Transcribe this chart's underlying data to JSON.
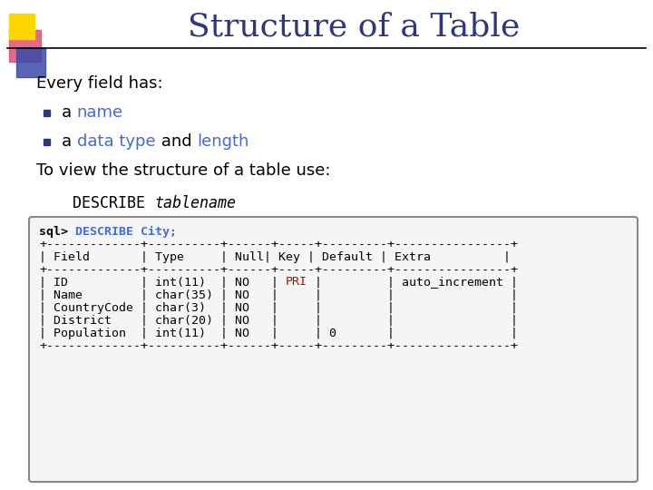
{
  "title": "Structure of a Table",
  "title_color": "#2E3585",
  "title_fontsize": 26,
  "bg_color": "#FFFFFF",
  "bullet_color": "#2E3585",
  "highlight_blue": "#4169E1",
  "body_text_color": "#000000",
  "mono_color": "#000000",
  "pri_color": "#CC0000",
  "code_border": "#888888",
  "body_lines": [
    {
      "bullet": false,
      "parts": [
        {
          "t": "Every field has:",
          "c": "#000000"
        }
      ]
    },
    {
      "bullet": true,
      "parts": [
        {
          "t": "a ",
          "c": "#000000"
        },
        {
          "t": "name",
          "c": "#4169E1"
        }
      ]
    },
    {
      "bullet": true,
      "parts": [
        {
          "t": "a ",
          "c": "#000000"
        },
        {
          "t": "data type",
          "c": "#4169E1"
        },
        {
          "t": " and ",
          "c": "#000000"
        },
        {
          "t": "length",
          "c": "#4169E1"
        }
      ]
    },
    {
      "bullet": false,
      "parts": [
        {
          "t": "To view the structure of a table use:",
          "c": "#000000"
        }
      ]
    }
  ],
  "code_first_line_parts": [
    {
      "t": "sql> ",
      "c": "#000000"
    },
    {
      "t": "DESCRIBE City;",
      "c": "#4169E1"
    }
  ],
  "code_lines": [
    {
      "type": "normal",
      "text": "+-------------+----------+------+-----+---------+----------------+"
    },
    {
      "type": "normal",
      "text": "| Field       | Type     | Null| Key | Default | Extra          |"
    },
    {
      "type": "normal",
      "text": "+-------------+----------+------+-----+---------+----------------+"
    },
    {
      "type": "pri",
      "text": "| ID          | int(11)  | NO   | PRI |         | auto_increment |"
    },
    {
      "type": "normal",
      "text": "| Name        | char(35) | NO   |     |         |                |"
    },
    {
      "type": "normal",
      "text": "| CountryCode | char(3)  | NO   |     |         |                |"
    },
    {
      "type": "normal",
      "text": "| District    | char(20) | NO   |     |         |                |"
    },
    {
      "type": "normal",
      "text": "| Population  | int(11)  | NO   |     | 0       |                |"
    },
    {
      "type": "normal",
      "text": "+-------------+----------+------+-----+---------+----------------+"
    }
  ],
  "pri_word": "PRI"
}
